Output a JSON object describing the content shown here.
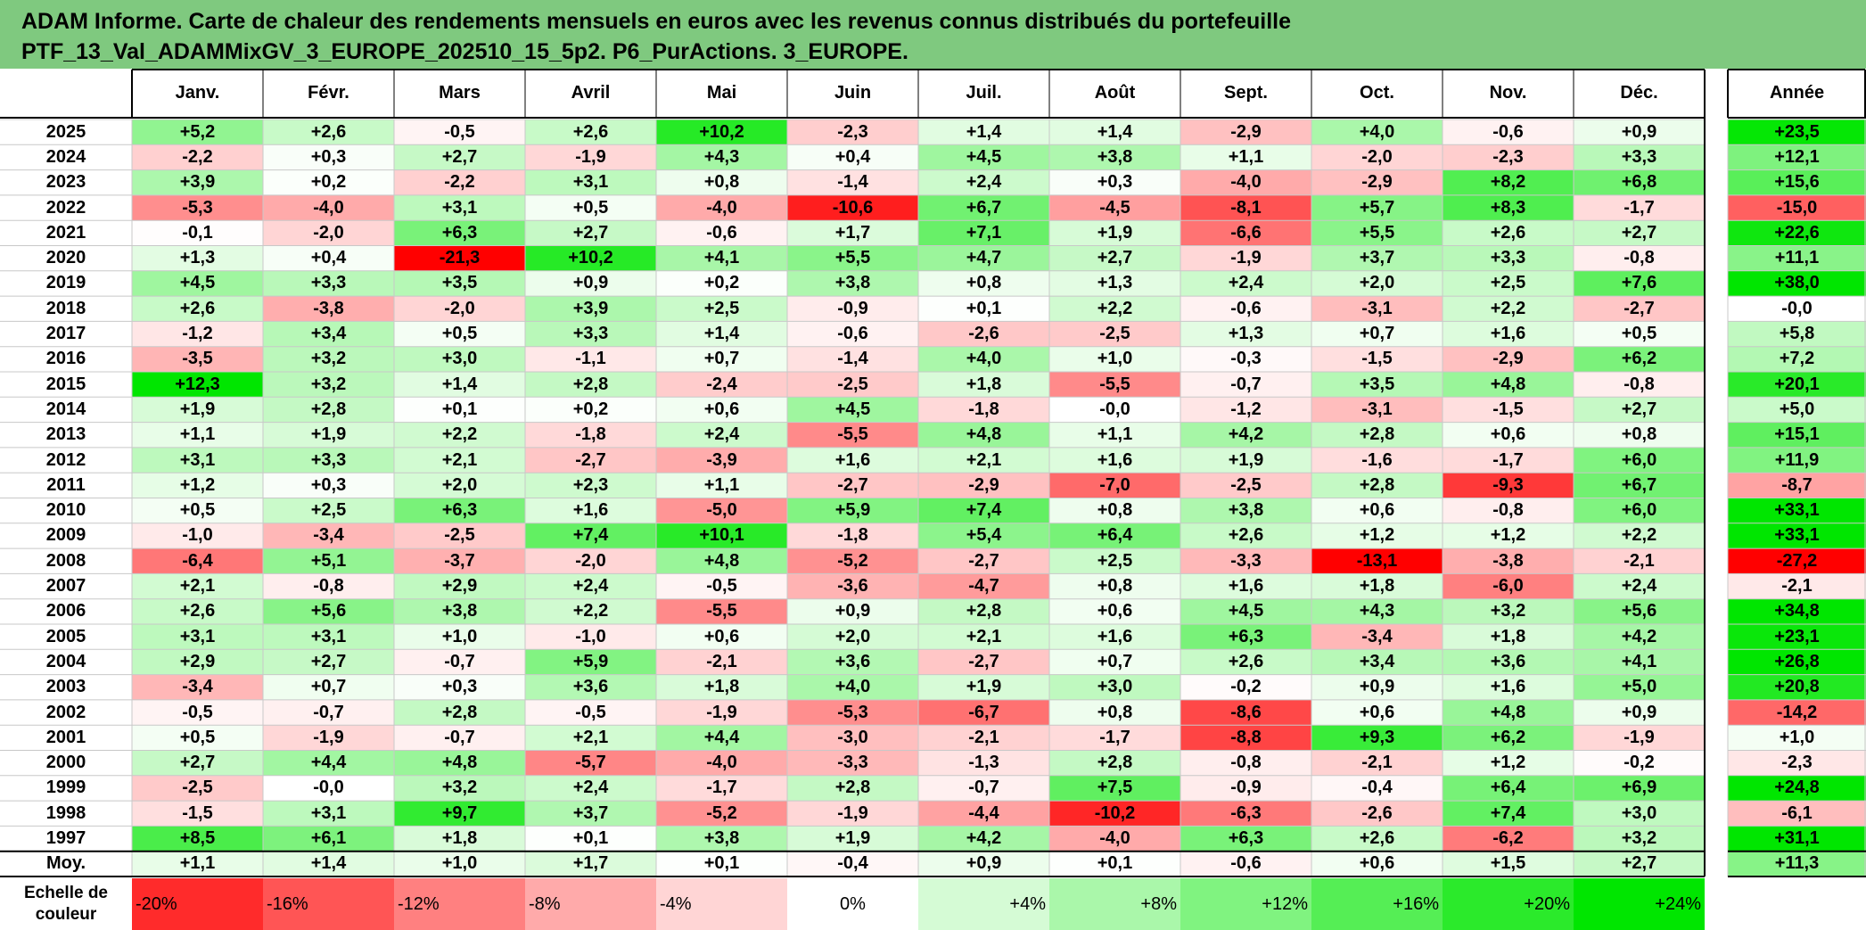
{
  "title": {
    "line1": "ADAM Informe. Carte de chaleur des rendements mensuels en euros avec les revenus connus distribués du portefeuille",
    "line2": "PTF_13_Val_ADAMMixGV_3_EUROPE_202510_15_5p2. P6_PurActions. 3_EUROPE."
  },
  "colors": {
    "header_band": "#7fc97f",
    "negative_max": "#ff0000",
    "positive_max": "#00e600",
    "neutral": "#ffffff"
  },
  "chart_data": {
    "type": "heatmap",
    "title": "Carte de chaleur des rendements mensuels en euros",
    "months": [
      "Janv.",
      "Févr.",
      "Mars",
      "Avril",
      "Mai",
      "Juin",
      "Juil.",
      "Août",
      "Sept.",
      "Oct.",
      "Nov.",
      "Déc."
    ],
    "annual_label": "Année",
    "average_label": "Moy.",
    "rows": [
      {
        "year": "2025",
        "values": [
          "+5,2",
          "+2,6",
          "-0,5",
          "+2,6",
          "+10,2",
          "-2,3",
          "+1,4",
          "+1,4",
          "-2,9",
          "+4,0",
          "-0,6",
          "+0,9"
        ],
        "annual": "+23,5"
      },
      {
        "year": "2024",
        "values": [
          "-2,2",
          "+0,3",
          "+2,7",
          "-1,9",
          "+4,3",
          "+0,4",
          "+4,5",
          "+3,8",
          "+1,1",
          "-2,0",
          "-2,3",
          "+3,3"
        ],
        "annual": "+12,1"
      },
      {
        "year": "2023",
        "values": [
          "+3,9",
          "+0,2",
          "-2,2",
          "+3,1",
          "+0,8",
          "-1,4",
          "+2,4",
          "+0,3",
          "-4,0",
          "-2,9",
          "+8,2",
          "+6,8"
        ],
        "annual": "+15,6"
      },
      {
        "year": "2022",
        "values": [
          "-5,3",
          "-4,0",
          "+3,1",
          "+0,5",
          "-4,0",
          "-10,6",
          "+6,7",
          "-4,5",
          "-8,1",
          "+5,7",
          "+8,3",
          "-1,7"
        ],
        "annual": "-15,0"
      },
      {
        "year": "2021",
        "values": [
          "-0,1",
          "-2,0",
          "+6,3",
          "+2,7",
          "-0,6",
          "+1,7",
          "+7,1",
          "+1,9",
          "-6,6",
          "+5,5",
          "+2,6",
          "+2,7"
        ],
        "annual": "+22,6"
      },
      {
        "year": "2020",
        "values": [
          "+1,3",
          "+0,4",
          "-21,3",
          "+10,2",
          "+4,1",
          "+5,5",
          "+4,7",
          "+2,7",
          "-1,9",
          "+3,7",
          "+3,3",
          "-0,8"
        ],
        "annual": "+11,1"
      },
      {
        "year": "2019",
        "values": [
          "+4,5",
          "+3,3",
          "+3,5",
          "+0,9",
          "+0,2",
          "+3,8",
          "+0,8",
          "+1,3",
          "+2,4",
          "+2,0",
          "+2,5",
          "+7,6"
        ],
        "annual": "+38,0"
      },
      {
        "year": "2018",
        "values": [
          "+2,6",
          "-3,8",
          "-2,0",
          "+3,9",
          "+2,5",
          "-0,9",
          "+0,1",
          "+2,2",
          "-0,6",
          "-3,1",
          "+2,2",
          "-2,7"
        ],
        "annual": "-0,0"
      },
      {
        "year": "2017",
        "values": [
          "-1,2",
          "+3,4",
          "+0,5",
          "+3,3",
          "+1,4",
          "-0,6",
          "-2,6",
          "-2,5",
          "+1,3",
          "+0,7",
          "+1,6",
          "+0,5"
        ],
        "annual": "+5,8"
      },
      {
        "year": "2016",
        "values": [
          "-3,5",
          "+3,2",
          "+3,0",
          "-1,1",
          "+0,7",
          "-1,4",
          "+4,0",
          "+1,0",
          "-0,3",
          "-1,5",
          "-2,9",
          "+6,2"
        ],
        "annual": "+7,2"
      },
      {
        "year": "2015",
        "values": [
          "+12,3",
          "+3,2",
          "+1,4",
          "+2,8",
          "-2,4",
          "-2,5",
          "+1,8",
          "-5,5",
          "-0,7",
          "+3,5",
          "+4,8",
          "-0,8"
        ],
        "annual": "+20,1"
      },
      {
        "year": "2014",
        "values": [
          "+1,9",
          "+2,8",
          "+0,1",
          "+0,2",
          "+0,6",
          "+4,5",
          "-1,8",
          "-0,0",
          "-1,2",
          "-3,1",
          "-1,5",
          "+2,7"
        ],
        "annual": "+5,0"
      },
      {
        "year": "2013",
        "values": [
          "+1,1",
          "+1,9",
          "+2,2",
          "-1,8",
          "+2,4",
          "-5,5",
          "+4,8",
          "+1,1",
          "+4,2",
          "+2,8",
          "+0,6",
          "+0,8"
        ],
        "annual": "+15,1"
      },
      {
        "year": "2012",
        "values": [
          "+3,1",
          "+3,3",
          "+2,1",
          "-2,7",
          "-3,9",
          "+1,6",
          "+2,1",
          "+1,6",
          "+1,9",
          "-1,6",
          "-1,7",
          "+6,0"
        ],
        "annual": "+11,9"
      },
      {
        "year": "2011",
        "values": [
          "+1,2",
          "+0,3",
          "+2,0",
          "+2,3",
          "+1,1",
          "-2,7",
          "-2,9",
          "-7,0",
          "-2,5",
          "+2,8",
          "-9,3",
          "+6,7"
        ],
        "annual": "-8,7"
      },
      {
        "year": "2010",
        "values": [
          "+0,5",
          "+2,5",
          "+6,3",
          "+1,6",
          "-5,0",
          "+5,9",
          "+7,4",
          "+0,8",
          "+3,8",
          "+0,6",
          "-0,8",
          "+6,0"
        ],
        "annual": "+33,1"
      },
      {
        "year": "2009",
        "values": [
          "-1,0",
          "-3,4",
          "-2,5",
          "+7,4",
          "+10,1",
          "-1,8",
          "+5,4",
          "+6,4",
          "+2,6",
          "+1,2",
          "+1,2",
          "+2,2"
        ],
        "annual": "+33,1"
      },
      {
        "year": "2008",
        "values": [
          "-6,4",
          "+5,1",
          "-3,7",
          "-2,0",
          "+4,8",
          "-5,2",
          "-2,7",
          "+2,5",
          "-3,3",
          "-13,1",
          "-3,8",
          "-2,1"
        ],
        "annual": "-27,2"
      },
      {
        "year": "2007",
        "values": [
          "+2,1",
          "-0,8",
          "+2,9",
          "+2,4",
          "-0,5",
          "-3,6",
          "-4,7",
          "+0,8",
          "+1,6",
          "+1,8",
          "-6,0",
          "+2,4"
        ],
        "annual": "-2,1"
      },
      {
        "year": "2006",
        "values": [
          "+2,6",
          "+5,6",
          "+3,8",
          "+2,2",
          "-5,5",
          "+0,9",
          "+2,8",
          "+0,6",
          "+4,5",
          "+4,3",
          "+3,2",
          "+5,6"
        ],
        "annual": "+34,8"
      },
      {
        "year": "2005",
        "values": [
          "+3,1",
          "+3,1",
          "+1,0",
          "-1,0",
          "+0,6",
          "+2,0",
          "+2,1",
          "+1,6",
          "+6,3",
          "-3,4",
          "+1,8",
          "+4,2"
        ],
        "annual": "+23,1"
      },
      {
        "year": "2004",
        "values": [
          "+2,9",
          "+2,7",
          "-0,7",
          "+5,9",
          "-2,1",
          "+3,6",
          "-2,7",
          "+0,7",
          "+2,6",
          "+3,4",
          "+3,6",
          "+4,1"
        ],
        "annual": "+26,8"
      },
      {
        "year": "2003",
        "values": [
          "-3,4",
          "+0,7",
          "+0,3",
          "+3,6",
          "+1,8",
          "+4,0",
          "+1,9",
          "+3,0",
          "-0,2",
          "+0,9",
          "+1,6",
          "+5,0"
        ],
        "annual": "+20,8"
      },
      {
        "year": "2002",
        "values": [
          "-0,5",
          "-0,7",
          "+2,8",
          "-0,5",
          "-1,9",
          "-5,3",
          "-6,7",
          "+0,8",
          "-8,6",
          "+0,6",
          "+4,8",
          "+0,9"
        ],
        "annual": "-14,2"
      },
      {
        "year": "2001",
        "values": [
          "+0,5",
          "-1,9",
          "-0,7",
          "+2,1",
          "+4,4",
          "-3,0",
          "-2,1",
          "-1,7",
          "-8,8",
          "+9,3",
          "+6,2",
          "-1,9"
        ],
        "annual": "+1,0"
      },
      {
        "year": "2000",
        "values": [
          "+2,7",
          "+4,4",
          "+4,8",
          "-5,7",
          "-4,0",
          "-3,3",
          "-1,3",
          "+2,8",
          "-0,8",
          "-2,1",
          "+1,2",
          "-0,2"
        ],
        "annual": "-2,3"
      },
      {
        "year": "1999",
        "values": [
          "-2,5",
          "-0,0",
          "+3,2",
          "+2,4",
          "-1,7",
          "+2,8",
          "-0,7",
          "+7,5",
          "-0,9",
          "-0,4",
          "+6,4",
          "+6,9"
        ],
        "annual": "+24,8"
      },
      {
        "year": "1998",
        "values": [
          "-1,5",
          "+3,1",
          "+9,7",
          "+3,7",
          "-5,2",
          "-1,9",
          "-4,4",
          "-10,2",
          "-6,3",
          "-2,6",
          "+7,4",
          "+3,0"
        ],
        "annual": "-6,1"
      },
      {
        "year": "1997",
        "values": [
          "+8,5",
          "+6,1",
          "+1,8",
          "+0,1",
          "+3,8",
          "+1,9",
          "+4,2",
          "-4,0",
          "+6,3",
          "+2,6",
          "-6,2",
          "+3,2"
        ],
        "annual": "+31,1"
      }
    ],
    "averages": {
      "values": [
        "+1,1",
        "+1,4",
        "+1,0",
        "+1,7",
        "+0,1",
        "-0,4",
        "+0,9",
        "+0,1",
        "-0,6",
        "+0,6",
        "+1,5",
        "+2,7"
      ],
      "annual": "+11,3"
    },
    "color_scale": {
      "label": "Echelle de couleur",
      "stops": [
        "-20%",
        "-16%",
        "-12%",
        "-8%",
        "-4%",
        "0%",
        "+4%",
        "+8%",
        "+12%",
        "+16%",
        "+20%",
        "+24%"
      ]
    }
  }
}
